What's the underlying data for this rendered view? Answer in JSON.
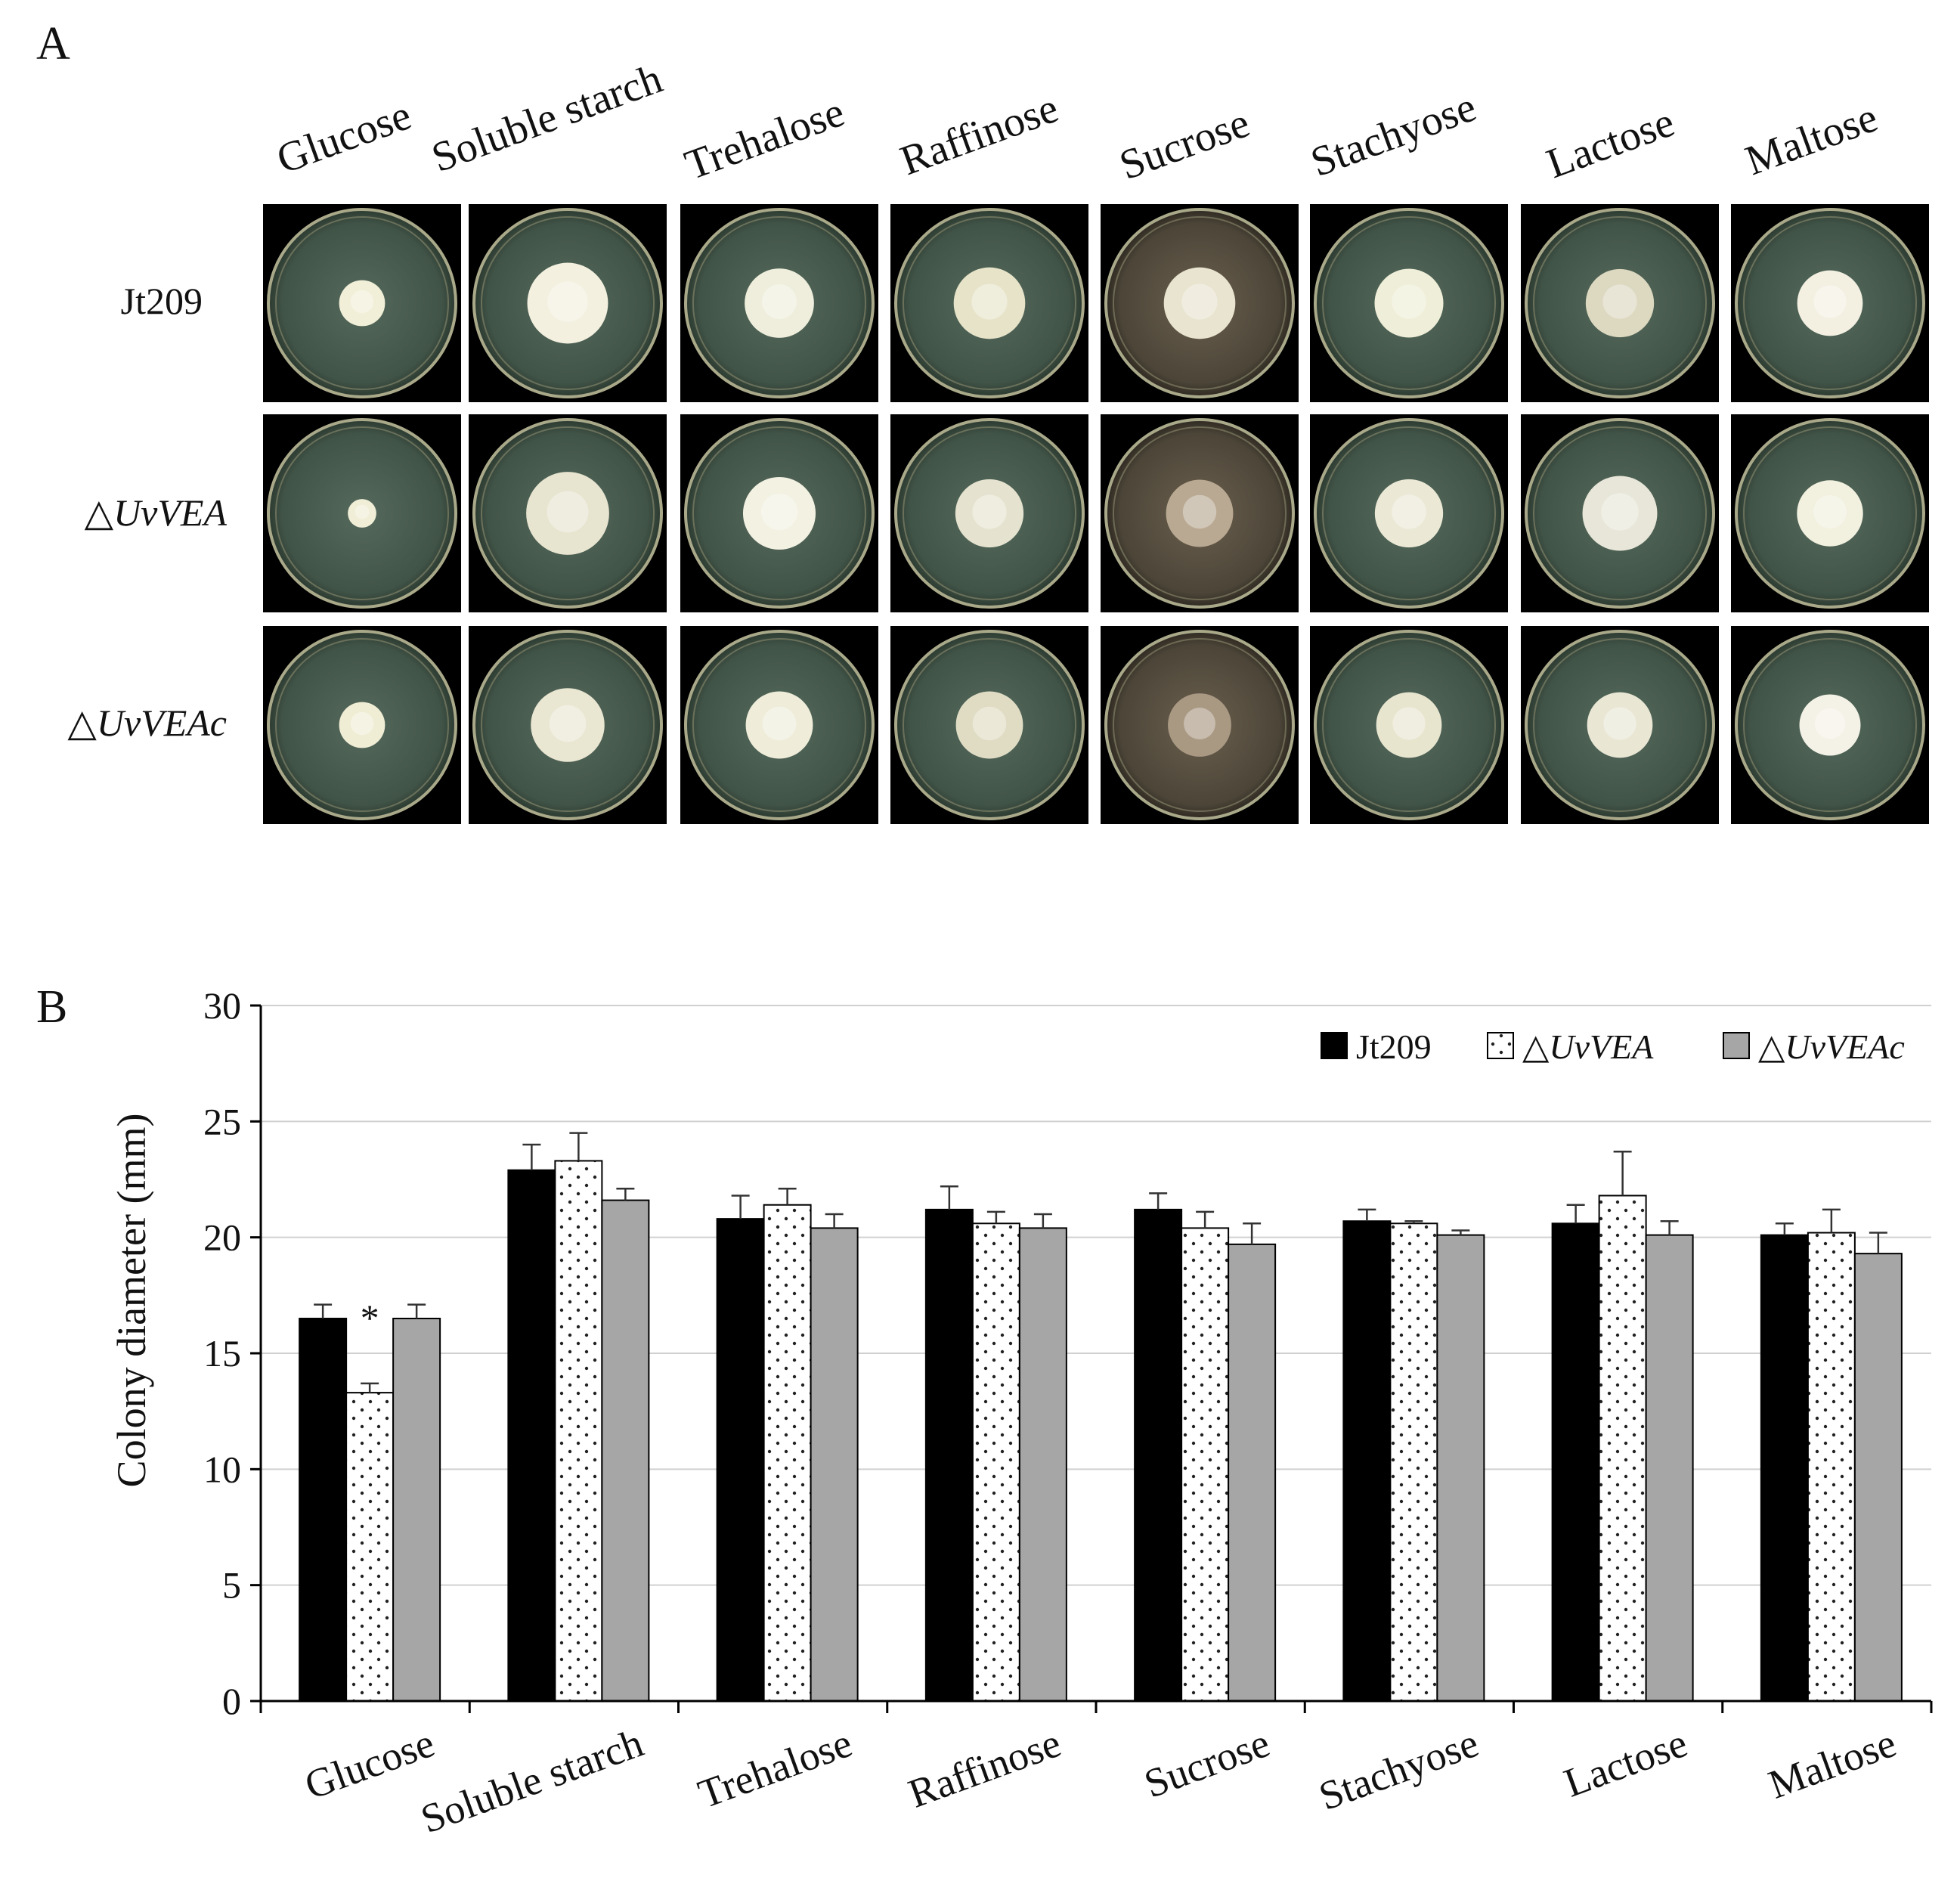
{
  "panel_a": {
    "letter": "A",
    "media": [
      "Glucose",
      "Soluble starch",
      "Trehalose",
      "Raffinose",
      "Sucrose",
      "Stachyose",
      "Lactose",
      "Maltose"
    ],
    "strains": [
      {
        "prefix": "",
        "name": "Jt209"
      },
      {
        "prefix": "△",
        "name": "UvVEA"
      },
      {
        "prefix": "△",
        "name": "UvVEAc"
      }
    ],
    "colony_diameter_mm": [
      [
        16.5,
        22.9,
        20.8,
        21.2,
        21.2,
        20.7,
        20.6,
        20.1
      ],
      [
        13.3,
        23.3,
        21.4,
        20.6,
        20.4,
        20.6,
        21.8,
        20.2
      ],
      [
        16.5,
        21.6,
        20.4,
        20.4,
        19.7,
        20.1,
        20.1,
        19.3
      ]
    ],
    "colony_colors": {
      "Jt209": [
        "#f1efd8",
        "#f3f0df",
        "#efeedc",
        "#e6e3c8",
        "#e8e4cf",
        "#efeed8",
        "#ddd8c0",
        "#f3f0e2"
      ],
      "UvVEA": [
        "#f0eed6",
        "#e7e4d0",
        "#f2f1e2",
        "#e5e3cf",
        "#b9a992",
        "#ebe9d6",
        "#e7e6d8",
        "#f2f0df"
      ],
      "UvVEAc": [
        "#f0edd5",
        "#e9e6d2",
        "#efedda",
        "#e0dcc4",
        "#a99983",
        "#e8e5cf",
        "#e9e6d4",
        "#f4f2e6"
      ]
    },
    "plate_colors": {
      "agar": "#4a5e52",
      "sucrose_agar": "#574f42",
      "background": "#000000"
    }
  },
  "chart_data": {
    "type": "bar",
    "panel_letter": "B",
    "categories": [
      "Glucose",
      "Soluble starch",
      "Trehalose",
      "Raffinose",
      "Sucrose",
      "Stachyose",
      "Lactose",
      "Maltose"
    ],
    "series": [
      {
        "name": "Jt209",
        "prefix": "",
        "style": "solid-black",
        "color": "#000000",
        "values": [
          16.5,
          22.9,
          20.8,
          21.2,
          21.2,
          20.7,
          20.6,
          20.1
        ],
        "errors": [
          0.6,
          1.1,
          1.0,
          1.0,
          0.7,
          0.5,
          0.8,
          0.5
        ]
      },
      {
        "name": "UvVEA",
        "prefix": "△",
        "style": "dotted-white",
        "color": "#ffffff",
        "values": [
          13.3,
          23.3,
          21.4,
          20.6,
          20.4,
          20.6,
          21.8,
          20.2
        ],
        "errors": [
          0.4,
          1.2,
          0.7,
          0.5,
          0.7,
          0.1,
          1.9,
          1.0
        ]
      },
      {
        "name": "UvVEAc",
        "prefix": "△",
        "style": "solid-gray",
        "color": "#a6a6a6",
        "values": [
          16.5,
          21.6,
          20.4,
          20.4,
          19.7,
          20.1,
          20.1,
          19.3
        ],
        "errors": [
          0.6,
          0.5,
          0.6,
          0.6,
          0.9,
          0.2,
          0.6,
          0.9
        ]
      }
    ],
    "annotations": [
      {
        "category": "Glucose",
        "series": "UvVEA",
        "text": "*"
      }
    ],
    "ylabel": "Colony diameter (mm)",
    "xlabel": "",
    "ylim": [
      0,
      30
    ],
    "yticks": [
      0,
      5,
      10,
      15,
      20,
      25,
      30
    ],
    "grid": true,
    "legend": "top-right"
  }
}
